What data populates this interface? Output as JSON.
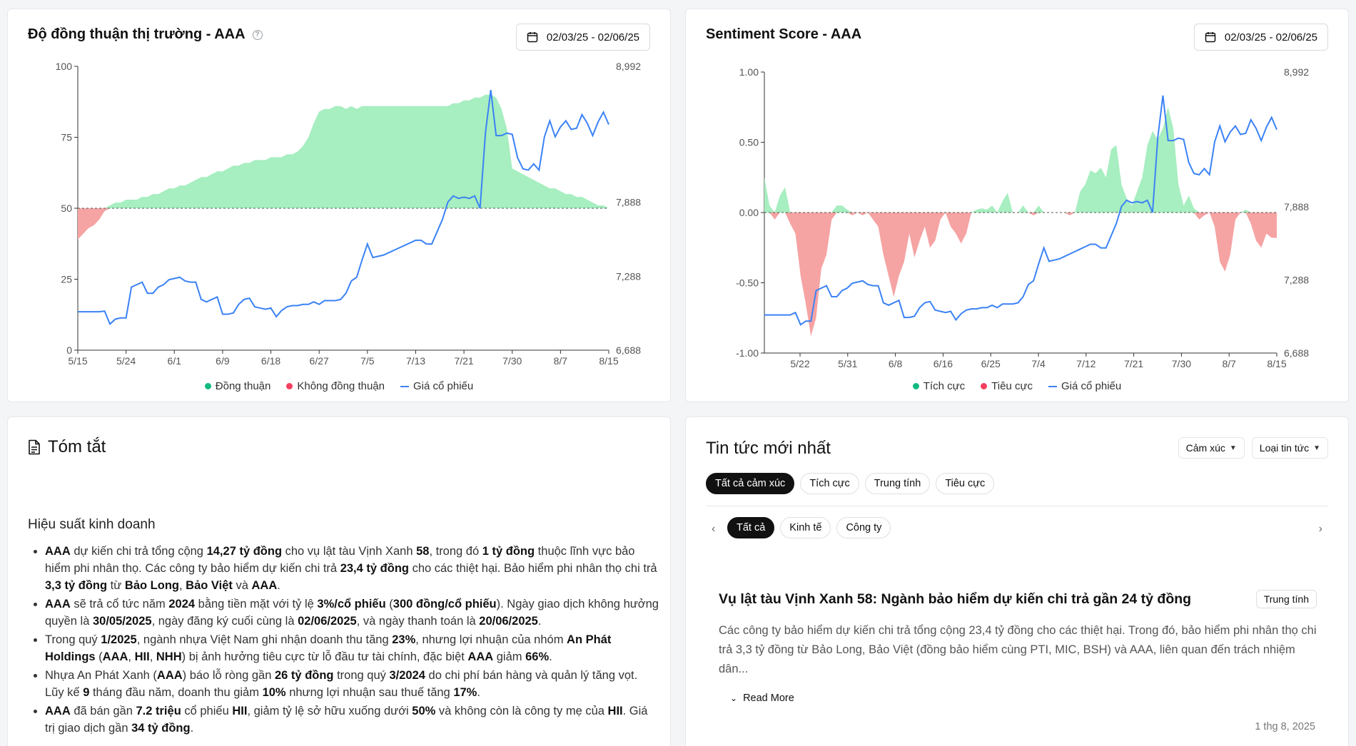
{
  "consensus_card": {
    "title": "Độ đồng thuận thị trường - AAA",
    "date_range": "02/03/25 - 02/06/25",
    "legend": [
      "Đồng thuận",
      "Không đồng thuận",
      "Giá cổ phiếu"
    ]
  },
  "sentiment_card": {
    "title": "Sentiment Score - AAA",
    "date_range": "02/03/25 - 02/06/25",
    "legend": [
      "Tích cực",
      "Tiêu cực",
      "Giá cổ phiếu"
    ]
  },
  "colors": {
    "positive": "#10b981",
    "positive_fill": "#a7eec0",
    "negative": "#f43f5e",
    "negative_fill": "#f6a3a3",
    "price": "#3b82f6"
  },
  "chart_data": [
    {
      "type": "area",
      "x_ticks": [
        "5/15",
        "5/24",
        "6/1",
        "6/9",
        "6/18",
        "6/27",
        "7/5",
        "7/13",
        "7/21",
        "7/30",
        "8/7",
        "8/15"
      ],
      "ylim": [
        0,
        100
      ],
      "y_ticks": [
        "0",
        "25",
        "50",
        "75",
        "100"
      ],
      "y2_ticks": [
        "6,688",
        "7,288",
        "7,888",
        "8,992"
      ],
      "baseline": 50,
      "series": [
        {
          "name": "Đồng thuận",
          "values": [
            39,
            41,
            43,
            44,
            46,
            49,
            51,
            52,
            52,
            53,
            53,
            53,
            54,
            54,
            55,
            55,
            56,
            57,
            57,
            58,
            58,
            59,
            60,
            61,
            61,
            62,
            63,
            63,
            64,
            65,
            65,
            66,
            66,
            67,
            67,
            67,
            68,
            68,
            68,
            69,
            69,
            70,
            72,
            75,
            80,
            84,
            85,
            85,
            86,
            86,
            85,
            86,
            85,
            86,
            86,
            86,
            86,
            86,
            86,
            86,
            86,
            86,
            86,
            86,
            86,
            86,
            86,
            86,
            86,
            86,
            87,
            87,
            88,
            88,
            89,
            89,
            90,
            90,
            89,
            85,
            78,
            64,
            63,
            62,
            61,
            60,
            59,
            58,
            57,
            57,
            56,
            55,
            55,
            54,
            54,
            53,
            52,
            51,
            51,
            50
          ]
        },
        {
          "name": "Giá cổ phiếu",
          "values": [
            7000,
            7000,
            7000,
            7000,
            7000,
            7005,
            6900,
            6940,
            6950,
            6950,
            7200,
            7220,
            7240,
            7150,
            7150,
            7200,
            7220,
            7260,
            7270,
            7280,
            7250,
            7240,
            7240,
            7100,
            7080,
            7100,
            7120,
            6980,
            6980,
            6990,
            7060,
            7100,
            7110,
            7040,
            7030,
            7020,
            7030,
            6960,
            7010,
            7040,
            7050,
            7050,
            7060,
            7060,
            7080,
            7060,
            7090,
            7090,
            7090,
            7100,
            7150,
            7250,
            7280,
            7420,
            7550,
            7440,
            7450,
            7460,
            7480,
            7500,
            7520,
            7540,
            7560,
            7580,
            7580,
            7550,
            7550,
            7650,
            7750,
            7890,
            7940,
            7920,
            7930,
            7920,
            7940,
            7840,
            8450,
            8800,
            8430,
            8430,
            8450,
            8440,
            8250,
            8160,
            8150,
            8200,
            8150,
            8420,
            8550,
            8420,
            8500,
            8550,
            8480,
            8490,
            8600,
            8530,
            8430,
            8540,
            8620,
            8520
          ]
        }
      ]
    },
    {
      "type": "area",
      "x_ticks": [
        "5/22",
        "5/31",
        "6/8",
        "6/16",
        "6/25",
        "7/4",
        "7/12",
        "7/21",
        "7/30",
        "8/7",
        "8/15"
      ],
      "ylim": [
        -1.0,
        1.0
      ],
      "y_ticks": [
        "-1.00",
        "-0.50",
        "0.00",
        "0.50",
        "1.00"
      ],
      "y2_ticks": [
        "6,688",
        "7,288",
        "7,888",
        "8,992"
      ],
      "baseline": 0,
      "series": [
        {
          "name": "Sentiment",
          "values": [
            0.25,
            0.05,
            -0.05,
            0.12,
            0.18,
            -0.08,
            -0.15,
            -0.45,
            -0.65,
            -0.88,
            -0.75,
            -0.4,
            -0.3,
            -0.05,
            0.05,
            0.05,
            0.02,
            -0.02,
            0.0,
            -0.02,
            0.0,
            -0.05,
            -0.1,
            -0.3,
            -0.45,
            -0.6,
            -0.45,
            -0.35,
            -0.15,
            -0.32,
            -0.2,
            -0.1,
            -0.25,
            -0.2,
            -0.05,
            0.0,
            -0.1,
            -0.15,
            -0.22,
            -0.15,
            0.0,
            0.02,
            0.03,
            0.02,
            0.05,
            0.0,
            0.08,
            0.14,
            0.0,
            0.0,
            0.05,
            0.0,
            -0.02,
            0.05,
            0.0,
            0.0,
            0.0,
            0.0,
            0.0,
            -0.02,
            0.0,
            0.15,
            0.2,
            0.3,
            0.28,
            0.32,
            0.25,
            0.45,
            0.48,
            0.2,
            0.1,
            0.05,
            0.15,
            0.25,
            0.48,
            0.58,
            0.52,
            0.6,
            0.75,
            0.6,
            0.2,
            0.05,
            0.12,
            0.03,
            -0.05,
            -0.02,
            0.0,
            -0.1,
            -0.35,
            -0.42,
            -0.3,
            -0.05,
            0.0,
            0.02,
            -0.08,
            -0.2,
            -0.25,
            -0.15,
            -0.18,
            -0.18
          ]
        },
        {
          "name": "Giá cổ phiếu",
          "values": [
            7000,
            7000,
            7000,
            7000,
            7000,
            7000,
            7020,
            6920,
            6950,
            6950,
            7200,
            7220,
            7240,
            7150,
            7150,
            7200,
            7220,
            7260,
            7270,
            7280,
            7250,
            7240,
            7240,
            7100,
            7080,
            7100,
            7120,
            6980,
            6980,
            6990,
            7060,
            7100,
            7110,
            7040,
            7030,
            7020,
            7030,
            6960,
            7010,
            7040,
            7050,
            7050,
            7060,
            7060,
            7080,
            7060,
            7090,
            7090,
            7090,
            7100,
            7150,
            7250,
            7280,
            7420,
            7550,
            7440,
            7450,
            7460,
            7480,
            7500,
            7520,
            7540,
            7560,
            7580,
            7580,
            7550,
            7550,
            7650,
            7750,
            7890,
            7940,
            7920,
            7930,
            7920,
            7940,
            7840,
            8450,
            8800,
            8430,
            8430,
            8450,
            8440,
            8250,
            8160,
            8150,
            8200,
            8150,
            8420,
            8550,
            8420,
            8500,
            8550,
            8480,
            8490,
            8600,
            8530,
            8430,
            8540,
            8620,
            8520
          ]
        }
      ]
    }
  ],
  "summary": {
    "title": "Tóm tắt",
    "section": "Hiệu suất kinh doanh",
    "bullets": [
      [
        {
          "b": "AAA"
        },
        {
          "t": " dự kiến chi trả tổng cộng "
        },
        {
          "b": "14,27 tỷ đồng"
        },
        {
          "t": " cho vụ lật tàu Vịnh Xanh "
        },
        {
          "b": "58"
        },
        {
          "t": ", trong đó "
        },
        {
          "b": "1 tỷ đồng"
        },
        {
          "t": " thuộc lĩnh vực bảo hiểm phi nhân thọ. Các công ty bảo hiểm dự kiến chi trả "
        },
        {
          "b": "23,4 tỷ đồng"
        },
        {
          "t": " cho các thiệt hại. Bảo hiểm phi nhân thọ chi trả "
        },
        {
          "b": "3,3 tỷ đồng"
        },
        {
          "t": " từ "
        },
        {
          "b": "Bảo Long"
        },
        {
          "t": ", "
        },
        {
          "b": "Bảo Việt"
        },
        {
          "t": " và "
        },
        {
          "b": "AAA"
        },
        {
          "t": "."
        }
      ],
      [
        {
          "b": "AAA"
        },
        {
          "t": " sẽ trả cổ tức năm "
        },
        {
          "b": "2024"
        },
        {
          "t": " bằng tiền mặt với tỷ lệ "
        },
        {
          "b": "3%/cổ phiếu"
        },
        {
          "t": " ("
        },
        {
          "b": "300 đồng/cổ phiếu"
        },
        {
          "t": "). Ngày giao dịch không hưởng quyền là "
        },
        {
          "b": "30/05/2025"
        },
        {
          "t": ", ngày đăng ký cuối cùng là "
        },
        {
          "b": "02/06/2025"
        },
        {
          "t": ", và ngày thanh toán là "
        },
        {
          "b": "20/06/2025"
        },
        {
          "t": "."
        }
      ],
      [
        {
          "t": "Trong quý "
        },
        {
          "b": "1/2025"
        },
        {
          "t": ", ngành nhựa Việt Nam ghi nhận doanh thu tăng "
        },
        {
          "b": "23%"
        },
        {
          "t": ", nhưng lợi nhuận của nhóm "
        },
        {
          "b": "An Phát Holdings"
        },
        {
          "t": " ("
        },
        {
          "b": "AAA"
        },
        {
          "t": ", "
        },
        {
          "b": "HII"
        },
        {
          "t": ", "
        },
        {
          "b": "NHH"
        },
        {
          "t": ") bị ảnh hưởng tiêu cực từ lỗ đầu tư tài chính, đặc biệt "
        },
        {
          "b": "AAA"
        },
        {
          "t": " giảm "
        },
        {
          "b": "66%"
        },
        {
          "t": "."
        }
      ],
      [
        {
          "t": "Nhựa An Phát Xanh ("
        },
        {
          "b": "AAA"
        },
        {
          "t": ") báo lỗ ròng gần "
        },
        {
          "b": "26 tỷ đồng"
        },
        {
          "t": " trong quý "
        },
        {
          "b": "3/2024"
        },
        {
          "t": " do chi phí bán hàng và quản lý tăng vọt. Lũy kế "
        },
        {
          "b": "9"
        },
        {
          "t": " tháng đầu năm, doanh thu giảm "
        },
        {
          "b": "10%"
        },
        {
          "t": " nhưng lợi nhuận sau thuế tăng "
        },
        {
          "b": "17%"
        },
        {
          "t": "."
        }
      ],
      [
        {
          "b": "AAA"
        },
        {
          "t": " đã bán gần "
        },
        {
          "b": "7.2 triệu"
        },
        {
          "t": " cổ phiếu "
        },
        {
          "b": "HII"
        },
        {
          "t": ", giảm tỷ lệ sở hữu xuống dưới "
        },
        {
          "b": "50%"
        },
        {
          "t": " và không còn là công ty mẹ của "
        },
        {
          "b": "HII"
        },
        {
          "t": ". Giá trị giao dịch gần "
        },
        {
          "b": "34 tỷ đồng"
        },
        {
          "t": "."
        }
      ]
    ]
  },
  "news": {
    "title": "Tin tức mới nhất",
    "filter_sentiment": "Cảm xúc",
    "filter_type": "Loại tin tức",
    "sentiment_chips": [
      "Tất cả cảm xúc",
      "Tích cực",
      "Trung tính",
      "Tiêu cực"
    ],
    "category_chips": [
      "Tất cả",
      "Kinh tế",
      "Công ty"
    ],
    "article": {
      "title": "Vụ lật tàu Vịnh Xanh 58: Ngành bảo hiểm dự kiến chi trả gần 24 tỷ đồng",
      "tag": "Trung tính",
      "body": "Các công ty bảo hiểm dự kiến chi trả tổng cộng 23,4 tỷ đồng cho các thiệt hại. Trong đó, bảo hiểm phi nhân thọ chi trả 3,3 tỷ đồng từ Bảo Long, Bảo Việt (đồng bảo hiểm cùng PTI, MIC, BSH) và AAA, liên quan đến trách nhiệm dân...",
      "read_more": "Read More",
      "date": "1 thg 8, 2025"
    }
  }
}
